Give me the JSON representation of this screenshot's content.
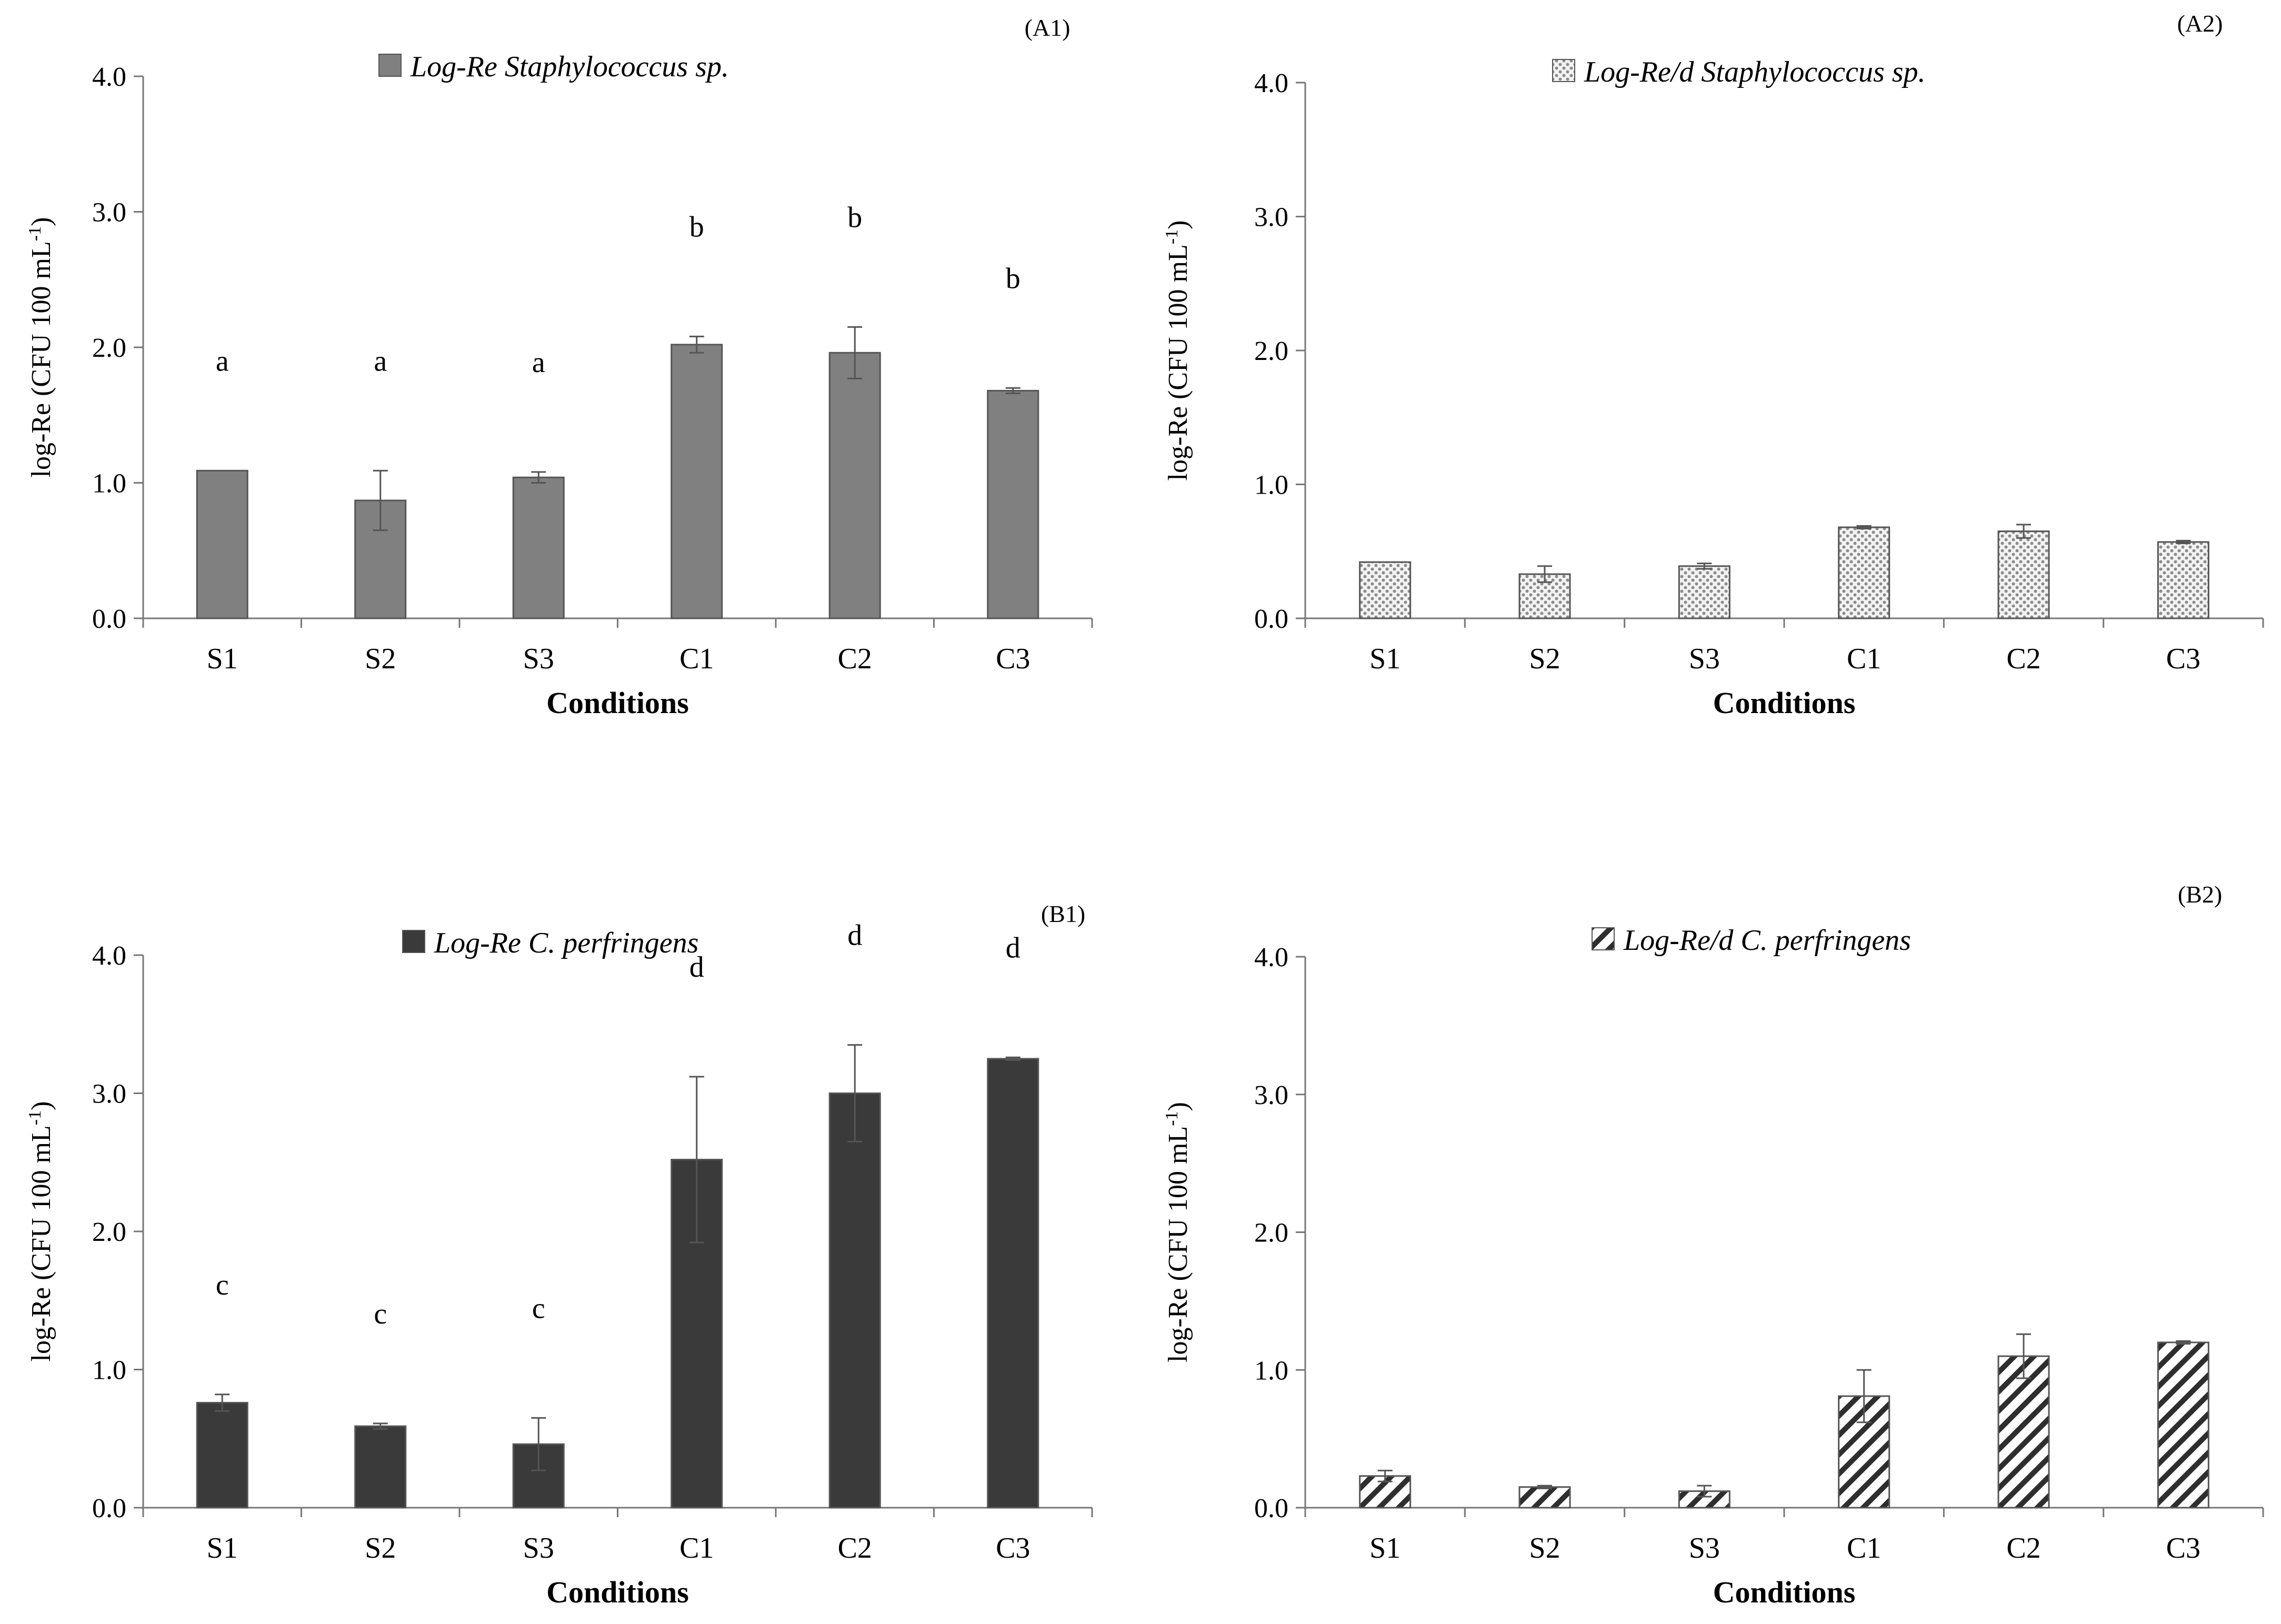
{
  "chart_data": [
    {
      "id": "A1",
      "type": "bar",
      "panel_label": "(A1)",
      "legend": "Log-Re Staphylococcus sp.",
      "categories": [
        "S1",
        "S2",
        "S3",
        "C1",
        "C2",
        "C3"
      ],
      "values": [
        1.09,
        0.87,
        1.04,
        2.02,
        1.96,
        1.68
      ],
      "errors": [
        0.0,
        0.22,
        0.04,
        0.06,
        0.19,
        0.02
      ],
      "sig_letters": [
        "a",
        "a",
        "a",
        "b",
        "b",
        "b"
      ],
      "xlabel": "Conditions",
      "ylabel": "log-Re (CFU 100 mL",
      "ylabel_sup": "-1",
      "ylabel_end": ")",
      "ylim": [
        0,
        4
      ],
      "yticks": [
        "0.0",
        "1.0",
        "2.0",
        "3.0",
        "4.0"
      ],
      "fill": "solid",
      "color": "#808080"
    },
    {
      "id": "A2",
      "type": "bar",
      "panel_label": "(A2)",
      "legend": "Log-Re/d Staphylococcus sp.",
      "categories": [
        "S1",
        "S2",
        "S3",
        "C1",
        "C2",
        "C3"
      ],
      "values": [
        0.42,
        0.33,
        0.39,
        0.68,
        0.65,
        0.57
      ],
      "errors": [
        0.0,
        0.06,
        0.02,
        0.01,
        0.05,
        0.01
      ],
      "sig_letters": [],
      "xlabel": "Conditions",
      "ylabel": "log-Re (CFU 100 mL",
      "ylabel_sup": "-1",
      "ylabel_end": ")",
      "ylim": [
        0,
        4
      ],
      "yticks": [
        "0.0",
        "1.0",
        "2.0",
        "3.0",
        "4.0"
      ],
      "fill": "dots",
      "color": "#9a9a9a"
    },
    {
      "id": "B1",
      "type": "bar",
      "panel_label": "(B1)",
      "legend": "Log-Re C. perfringens",
      "categories": [
        "S1",
        "S2",
        "S3",
        "C1",
        "C2",
        "C3"
      ],
      "values": [
        0.76,
        0.59,
        0.46,
        2.52,
        3.0,
        3.25
      ],
      "errors": [
        0.06,
        0.02,
        0.19,
        0.6,
        0.35,
        0.01
      ],
      "sig_letters": [
        "c",
        "c",
        "c",
        "d",
        "d",
        "d"
      ],
      "xlabel": "Conditions",
      "ylabel": "log-Re (CFU 100 mL",
      "ylabel_sup": "-1",
      "ylabel_end": ")",
      "ylim": [
        0,
        4
      ],
      "yticks": [
        "0.0",
        "1.0",
        "2.0",
        "3.0",
        "4.0"
      ],
      "fill": "solid",
      "color": "#3a3a3a"
    },
    {
      "id": "B2",
      "type": "bar",
      "panel_label": "(B2)",
      "legend": "Log-Re/d C. perfringens",
      "categories": [
        "S1",
        "S2",
        "S3",
        "C1",
        "C2",
        "C3"
      ],
      "values": [
        0.23,
        0.15,
        0.12,
        0.81,
        1.1,
        1.2
      ],
      "errors": [
        0.04,
        0.01,
        0.04,
        0.19,
        0.16,
        0.01
      ],
      "sig_letters": [],
      "xlabel": "Conditions",
      "ylabel": "log-Re (CFU 100 mL",
      "ylabel_sup": "-1",
      "ylabel_end": ")",
      "ylim": [
        0,
        4
      ],
      "yticks": [
        "0.0",
        "1.0",
        "2.0",
        "3.0",
        "4.0"
      ],
      "fill": "hatch",
      "color": "#333333"
    }
  ]
}
